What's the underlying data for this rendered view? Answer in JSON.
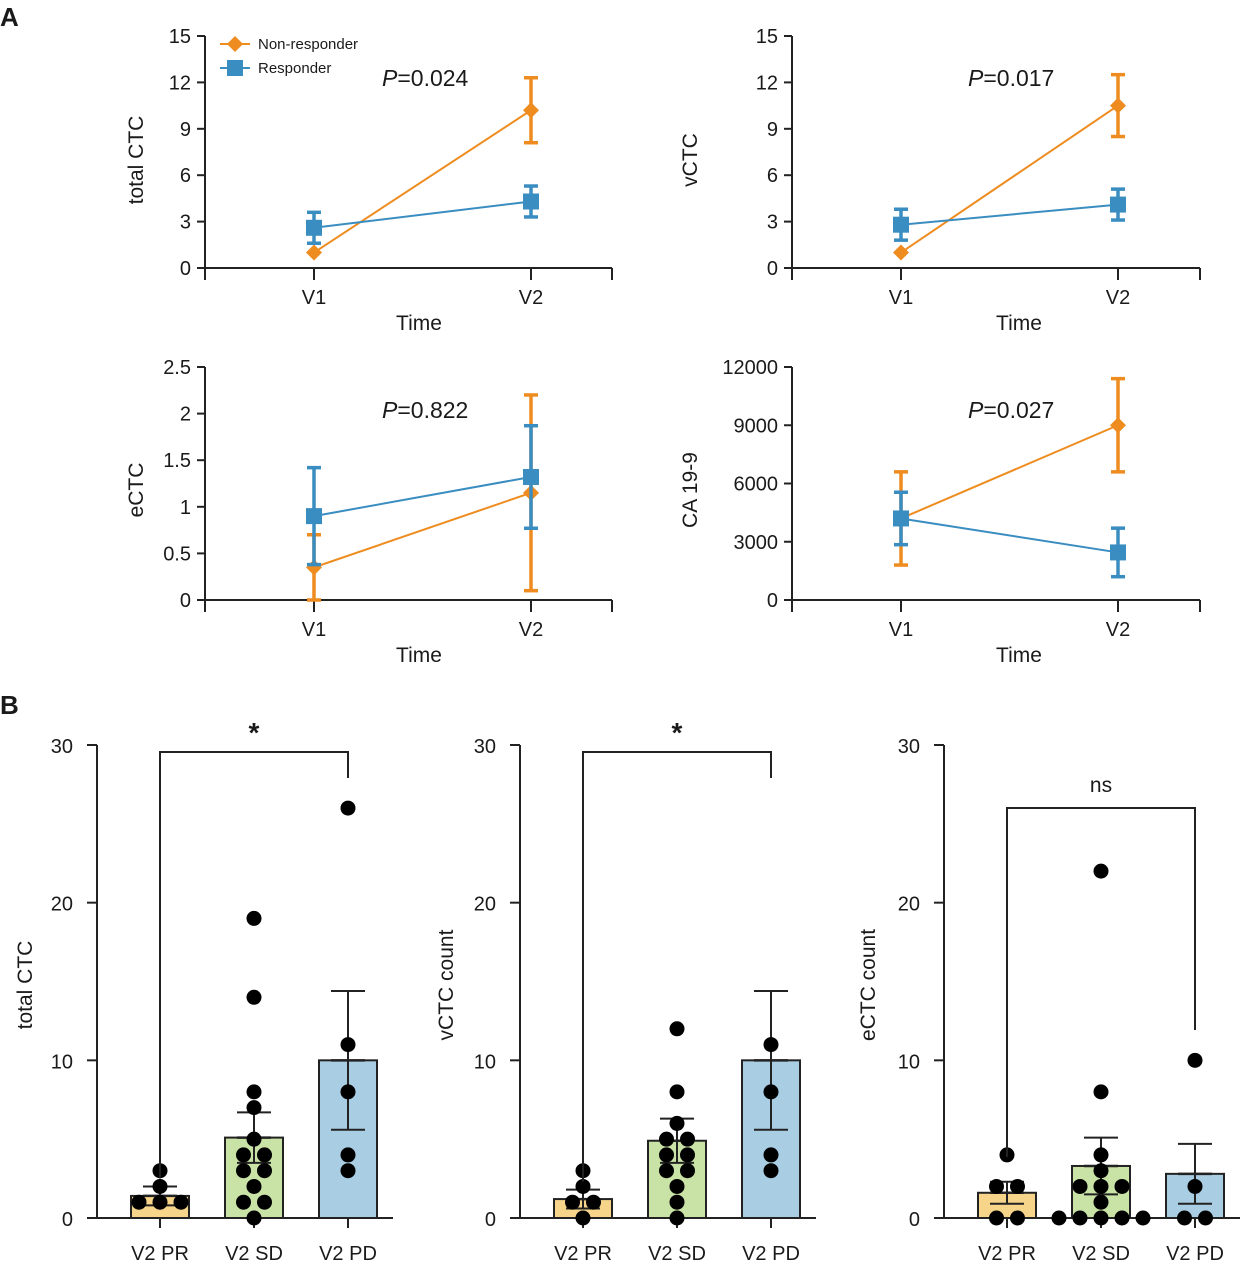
{
  "panel_labels": {
    "a": "A",
    "b": "B"
  },
  "colors": {
    "non_responder": "#EE8C1F",
    "responder": "#3A8DC1",
    "pr_fill": "#F6D58A",
    "sd_fill": "#C9E3A6",
    "pd_fill": "#A9CEE3",
    "dots": "#000000"
  },
  "legend": {
    "non_responder": "Non-responder",
    "responder": "Responder"
  },
  "chart_data": [
    {
      "type": "line",
      "panel": "A",
      "ylabel": "total CTC",
      "xlabel": "Time",
      "categories": [
        "V1",
        "V2"
      ],
      "ylim": [
        0,
        15
      ],
      "yticks": [
        0,
        3,
        6,
        9,
        12,
        15
      ],
      "ytick_labels": [
        "0",
        "3",
        "6",
        "9",
        "12",
        "15"
      ],
      "p_prefix": "P",
      "p_rest": "=0.024",
      "series": [
        {
          "name": "Non-responder",
          "values": [
            1.0,
            10.2
          ],
          "err": [
            0.0,
            2.1
          ]
        },
        {
          "name": "Responder",
          "values": [
            2.6,
            4.3
          ],
          "err": [
            1.0,
            1.0
          ]
        }
      ]
    },
    {
      "type": "line",
      "panel": "A",
      "ylabel": "vCTC",
      "xlabel": "Time",
      "categories": [
        "V1",
        "V2"
      ],
      "ylim": [
        0,
        15
      ],
      "yticks": [
        0,
        3,
        6,
        9,
        12,
        15
      ],
      "ytick_labels": [
        "0",
        "3",
        "6",
        "9",
        "12",
        "15"
      ],
      "p_prefix": "P",
      "p_rest": "=0.017",
      "series": [
        {
          "name": "Non-responder",
          "values": [
            1.0,
            10.5
          ],
          "err": [
            0.0,
            2.0
          ]
        },
        {
          "name": "Responder",
          "values": [
            2.8,
            4.1
          ],
          "err": [
            1.0,
            1.0
          ]
        }
      ]
    },
    {
      "type": "line",
      "panel": "A",
      "ylabel": "eCTC",
      "xlabel": "Time",
      "categories": [
        "V1",
        "V2"
      ],
      "ylim": [
        0,
        2.5
      ],
      "yticks": [
        0,
        0.5,
        1,
        1.5,
        2,
        2.5
      ],
      "ytick_labels": [
        "0",
        "0.5",
        "1",
        "1.5",
        "2",
        "2.5"
      ],
      "p_prefix": "P",
      "p_rest": "=0.822",
      "series": [
        {
          "name": "Non-responder",
          "values": [
            0.35,
            1.15
          ],
          "err": [
            0.35,
            1.05
          ]
        },
        {
          "name": "Responder",
          "values": [
            0.9,
            1.32
          ],
          "err": [
            0.52,
            0.55
          ]
        }
      ]
    },
    {
      "type": "line",
      "panel": "A",
      "ylabel": "CA 19-9",
      "xlabel": "Time",
      "categories": [
        "V1",
        "V2"
      ],
      "ylim": [
        0,
        12000
      ],
      "yticks": [
        0,
        3000,
        6000,
        9000,
        12000
      ],
      "ytick_labels": [
        "0",
        "3000",
        "6000",
        "9000",
        "12000"
      ],
      "p_prefix": "P",
      "p_rest": "=0.027",
      "series": [
        {
          "name": "Non-responder",
          "values": [
            4200,
            9000
          ],
          "err": [
            2400,
            2400
          ]
        },
        {
          "name": "Responder",
          "values": [
            4200,
            2450
          ],
          "err": [
            1350,
            1250
          ]
        }
      ]
    },
    {
      "type": "bar",
      "panel": "B",
      "ylabel": "total CTC",
      "categories": [
        "V2 PR",
        "V2 SD",
        "V2 PD"
      ],
      "ylim": [
        0,
        30
      ],
      "yticks": [
        0,
        10,
        20,
        30
      ],
      "ytick_labels": [
        "0",
        "10",
        "20",
        "30"
      ],
      "values": [
        1.4,
        5.1,
        10.0
      ],
      "err": [
        0.6,
        1.6,
        4.4
      ],
      "points": [
        [
          1,
          1,
          1,
          2,
          3
        ],
        [
          0,
          1,
          1,
          2,
          3,
          3,
          4,
          4,
          5,
          7,
          8,
          14,
          19
        ],
        [
          3,
          4,
          8,
          11,
          26
        ]
      ],
      "bracket": {
        "from": 0,
        "to": 2,
        "label": "*"
      }
    },
    {
      "type": "bar",
      "panel": "B",
      "ylabel": "vCTC count",
      "categories": [
        "V2 PR",
        "V2 SD",
        "V2 PD"
      ],
      "ylim": [
        0,
        30
      ],
      "yticks": [
        0,
        10,
        20,
        30
      ],
      "ytick_labels": [
        "0",
        "10",
        "20",
        "30"
      ],
      "values": [
        1.2,
        4.9,
        10.0
      ],
      "err": [
        0.6,
        1.4,
        4.4
      ],
      "points": [
        [
          0,
          1,
          1,
          2,
          3
        ],
        [
          0,
          1,
          2,
          3,
          3,
          4,
          4,
          5,
          5,
          6,
          8,
          12
        ],
        [
          3,
          4,
          8,
          11
        ]
      ],
      "bracket": {
        "from": 0,
        "to": 2,
        "label": "*"
      }
    },
    {
      "type": "bar",
      "panel": "B",
      "ylabel": "eCTC count",
      "categories": [
        "V2 PR",
        "V2 SD",
        "V2 PD"
      ],
      "ylim": [
        0,
        30
      ],
      "yticks": [
        0,
        10,
        20,
        30
      ],
      "ytick_labels": [
        "0",
        "10",
        "20",
        "30"
      ],
      "values": [
        1.6,
        3.3,
        2.8
      ],
      "err": [
        0.7,
        1.8,
        1.9
      ],
      "points": [
        [
          0,
          0,
          2,
          2,
          4
        ],
        [
          0,
          0,
          0,
          0,
          0,
          1,
          2,
          2,
          2,
          3,
          4,
          8,
          22
        ],
        [
          0,
          0,
          2,
          10
        ]
      ],
      "bracket": {
        "from": 0,
        "to": 2,
        "label": "ns"
      }
    }
  ]
}
